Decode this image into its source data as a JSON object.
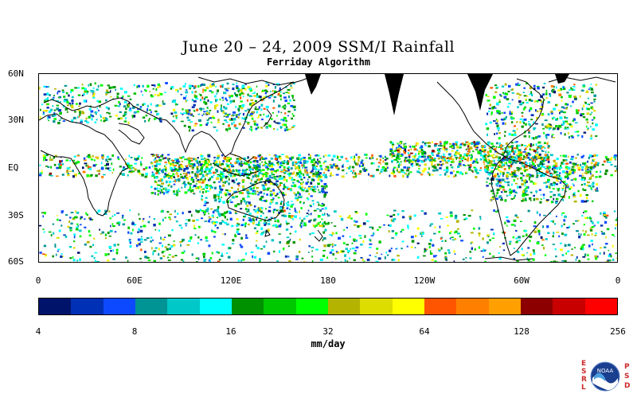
{
  "title": "June 20 – 24, 2009 SSM/I Rainfall",
  "subtitle": "Ferriday Algorithm",
  "map": {
    "lat_labels": [
      "60N",
      "30N",
      "EQ",
      "30S",
      "60S"
    ],
    "lon_labels": [
      "0",
      "60E",
      "120E",
      "180",
      "120W",
      "60W",
      "0"
    ]
  },
  "colorbar": {
    "unit": "mm/day",
    "tick_labels": [
      "4",
      "8",
      "16",
      "32",
      "64",
      "128",
      "256"
    ],
    "colors": [
      "#00136b",
      "#0030b6",
      "#0d4aff",
      "#009494",
      "#00c8c8",
      "#00ffff",
      "#009100",
      "#00c800",
      "#00ff00",
      "#b4b400",
      "#dddd00",
      "#ffff00",
      "#ff5500",
      "#ff8000",
      "#ffa000",
      "#8c0000",
      "#c80000",
      "#ff0000"
    ]
  },
  "logo": {
    "left_letters": [
      "E",
      "S",
      "R",
      "L"
    ],
    "right_letters": [
      "P",
      "S",
      "D"
    ],
    "emblem_text": "NOAA"
  }
}
